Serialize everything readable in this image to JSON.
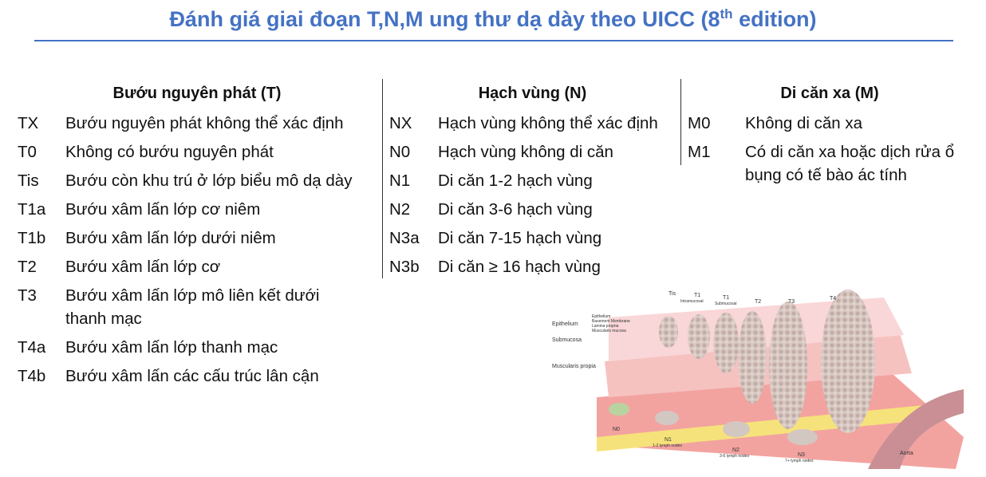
{
  "title": {
    "main": "Đánh giá giai đoạn T,N,M ung thư dạ dày theo UICC (8",
    "sup": "th",
    "end": " edition)"
  },
  "columns": {
    "T": {
      "header": "Bướu nguyên phát (T)",
      "rows": [
        {
          "code": "TX",
          "desc": [
            "Bướu nguyên phát không thể xác định"
          ]
        },
        {
          "code": "T0",
          "desc": [
            "Không có bướu nguyên phát"
          ]
        },
        {
          "code": "Tis",
          "desc": [
            "Bướu còn khu trú ở lớp biểu mô dạ dày"
          ]
        },
        {
          "code": "T1a",
          "desc": [
            "Bướu xâm lấn lớp cơ niêm"
          ]
        },
        {
          "code": "T1b",
          "desc": [
            "Bướu xâm lấn lớp dưới niêm"
          ]
        },
        {
          "code": "T2",
          "desc": [
            "Bướu xâm lấn lớp cơ"
          ]
        },
        {
          "code": "T3",
          "desc": [
            "Bướu xâm lấn lớp mô liên kết dưới",
            "thanh mạc"
          ]
        },
        {
          "code": "T4a",
          "desc": [
            "Bướu xâm lấn lớp thanh mạc"
          ]
        },
        {
          "code": "T4b",
          "desc": [
            "Bướu xâm lấn các cấu trúc lân cận"
          ]
        }
      ]
    },
    "N": {
      "header": "Hạch vùng (N)",
      "rows": [
        {
          "code": "NX",
          "desc": [
            "Hạch vùng không thể xác định"
          ]
        },
        {
          "code": "N0",
          "desc": [
            "Hạch vùng không di căn"
          ]
        },
        {
          "code": "N1",
          "desc": [
            "Di căn 1-2 hạch vùng"
          ]
        },
        {
          "code": "N2",
          "desc": [
            "Di căn 3-6 hạch vùng"
          ]
        },
        {
          "code": "N3a",
          "desc": [
            "Di căn 7-15 hạch vùng"
          ]
        },
        {
          "code": "N3b",
          "desc": [
            "Di căn ≥ 16 hạch vùng"
          ]
        }
      ]
    },
    "M": {
      "header": "Di căn xa (M)",
      "rows": [
        {
          "code": "M0",
          "desc": [
            "Không di căn xa"
          ]
        },
        {
          "code": "M1",
          "desc": [
            "Có di căn xa hoặc dịch rửa ổ",
            "bụng có tế bào ác tính"
          ]
        }
      ]
    }
  },
  "illustration": {
    "stage_labels": [
      "Tis",
      "T1",
      "T1",
      "T2",
      "T3",
      "T4"
    ],
    "stage_sublabels": [
      "Intramucosal",
      "Submucosal"
    ],
    "layer_labels": [
      "Epithelium",
      "Basement Membrane",
      "Lamina propria",
      "Muscularis mucosa",
      "Epithelium",
      "Submucosa",
      "Muscularis propia"
    ],
    "node_labels": [
      "N0",
      "N1",
      "1-2 lymph nodes",
      "N2",
      "3-6 lymph nodes",
      "N3",
      "7+ lymph nodes",
      "Aorta"
    ]
  }
}
